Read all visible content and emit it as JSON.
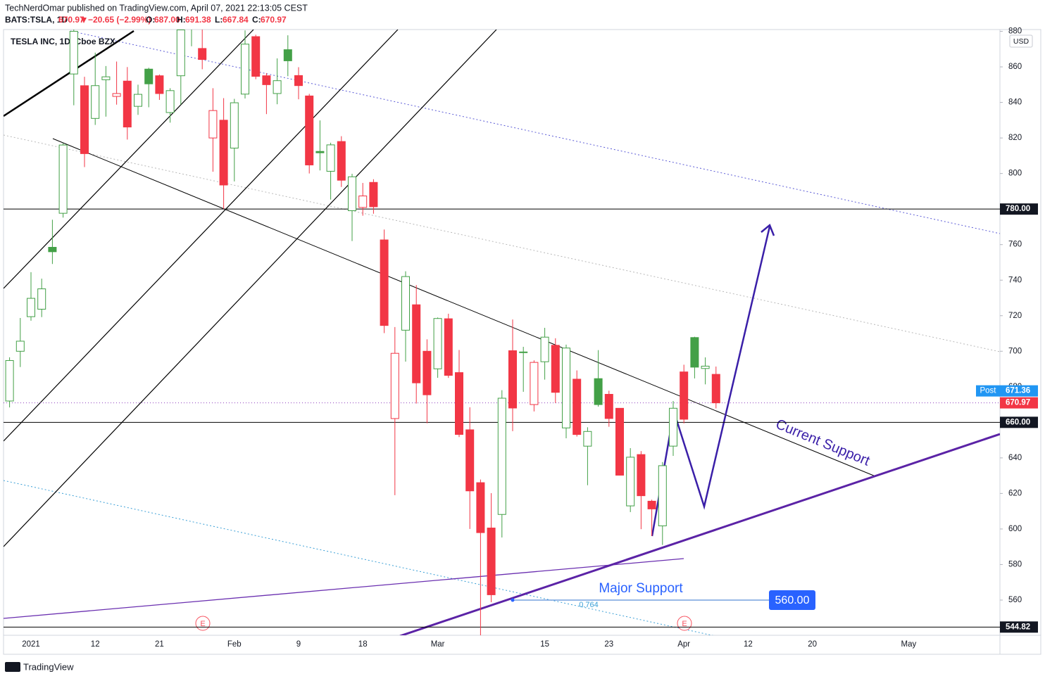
{
  "header": {
    "publisher": "TechNerdOmar published on TradingView.com, April 07, 2021 22:13:05 CEST",
    "symbol": "BATS:TSLA, 1D",
    "price": "670.97",
    "change": "−20.65 (−2.99%)",
    "ohlc": [
      {
        "key": "O:",
        "value": "687.00"
      },
      {
        "key": "H:",
        "value": "691.38"
      },
      {
        "key": "L:",
        "value": "667.84"
      },
      {
        "key": "C:",
        "value": "670.97"
      }
    ]
  },
  "footer": {
    "brand": "TradingView"
  },
  "chart_data": {
    "type": "candlestick",
    "title": "TESLA INC, 1D, Cboe BZX",
    "currency": "USD",
    "categories": [
      null,
      null,
      "2021",
      null,
      null,
      null,
      null,
      null,
      "12",
      null,
      null,
      null,
      null,
      null,
      "21",
      null,
      null,
      null,
      null,
      null,
      null,
      "Feb",
      null,
      null,
      null,
      null,
      null,
      "9",
      null,
      null,
      null,
      null,
      null,
      "18",
      null,
      null,
      null,
      null,
      null,
      null,
      "Mar",
      null,
      null,
      null,
      null,
      null,
      null,
      null,
      null,
      null,
      "15",
      null,
      null,
      null,
      null,
      null,
      "23",
      null,
      null,
      null,
      null,
      null,
      null,
      "Apr",
      null,
      null,
      null,
      null,
      null,
      "12",
      null,
      null,
      null,
      null,
      null,
      "20",
      null,
      null,
      null,
      null,
      null,
      null,
      null,
      null,
      "May",
      null,
      null,
      null,
      null,
      null,
      null,
      null
    ],
    "open": [
      672,
      699.99,
      719.46,
      723.66,
      758.49,
      777.63,
      856,
      849.4,
      831,
      852.76,
      843.39,
      852,
      837.8,
      858.74,
      855,
      834.31,
      855,
      891.38,
      870.35,
      820,
      830,
      814.29,
      844.68,
      877.02,
      855,
      845,
      869.67,
      855.12,
      843.64,
      812.44,
      801.26,
      818,
      779.09,
      780.9,
      795,
      762.64,
      662.13,
      711.85,
      726.15,
      700,
      690.11,
      718.28,
      687.99,
      655.8,
      626.06,
      600.55,
      608.18,
      700.3,
      699.4,
      670,
      694.09,
      703.35,
      656.87,
      684.29,
      646.6,
      684.59,
      675.77,
      667.91,
      613,
      641.87,
      615.64,
      601.75,
      646.62,
      688.37,
      707.71,
      690.3,
      687,
      null,
      null,
      null,
      null,
      null,
      null,
      null,
      null,
      null,
      null,
      null,
      null,
      null,
      null,
      null,
      null,
      null,
      null,
      null,
      null,
      null,
      null,
      null,
      null,
      null
    ],
    "high": [
      696.6,
      718.72,
      744.49,
      740.84,
      774,
      816.99,
      884.49,
      854.43,
      868,
      860.47,
      863,
      859.9,
      850,
      859.5,
      855.72,
      848,
      900.4,
      895.9,
      891.5,
      848,
      842.41,
      842,
      880.5,
      878.08,
      856.5,
      864.77,
      877.77,
      859.8,
      844.82,
      829.88,
      817.33,
      821,
      799.84,
      794.69,
      796.79,
      768.5,
      713.61,
      745,
      737.21,
      706.7,
      719,
      721.11,
      700.7,
      668.5,
      627.84,
      620.13,
      678.09,
      717.85,
      702.5,
      694.88,
      713.18,
      707.31,
      703.73,
      689.23,
      657.23,
      700.64,
      677.8,
      668.02,
      645.5,
      643.82,
      616.48,
      637.66,
      672,
      692.42,
      708.16,
      696.55,
      691.38,
      null,
      null,
      null,
      null,
      null,
      null,
      null,
      null,
      null,
      null,
      null,
      null,
      null,
      null,
      null,
      null,
      null,
      null,
      null,
      null,
      null,
      null,
      null,
      null,
      null
    ],
    "low": [
      668.4,
      691.12,
      717.19,
      719.2,
      749.1,
      775.2,
      838.39,
      803.62,
      827.34,
      832,
      838.75,
      819.1,
      833,
      837.28,
      841.42,
      828.62,
      838.82,
      871.6,
      858.66,
      801,
      780.1,
      795.56,
      842.2,
      853.06,
      833.42,
      838.97,
      854.75,
      841.75,
      800.02,
      801.73,
      785.33,
      792.44,
      762.01,
      776.27,
      777.37,
      710.2,
      619,
      694.17,
      670.58,
      659.51,
      685.05,
      685,
      651.71,
      600,
      539.49,
      558.79,
      595.21,
      655.06,
      677.18,
      666.14,
      684.04,
      670.88,
      651.01,
      652,
      624.62,
      668.84,
      657.51,
      630.11,
      609.5,
      599.89,
      596.02,
      591.01,
      641.11,
      659.42,
      684.7,
      681.37,
      667.84,
      null,
      null,
      null,
      null,
      null,
      null,
      null,
      null,
      null,
      null,
      null,
      null,
      null,
      null,
      null,
      null,
      null,
      null,
      null,
      null,
      null,
      null,
      null,
      null,
      null
    ],
    "close": [
      694.78,
      705.67,
      729.77,
      735.11,
      755.98,
      816.04,
      880.02,
      811.19,
      849.44,
      854.41,
      845,
      826.16,
      844.55,
      850.45,
      844.99,
      846.64,
      880.8,
      883.09,
      864.16,
      835.43,
      793.53,
      839.81,
      872.79,
      854.69,
      849.99,
      852.23,
      863.42,
      849.46,
      804.82,
      811.66,
      816.12,
      796.22,
      798.15,
      787.38,
      781.3,
      714.5,
      698.84,
      742.02,
      682.22,
      675.5,
      718.43,
      686.44,
      653.2,
      621.44,
      597.95,
      563,
      673.58,
      668.06,
      699.6,
      693.73,
      707.94,
      676.88,
      701.81,
      653.16,
      654.87,
      670,
      662.16,
      630.27,
      640.39,
      618.71,
      611.29,
      635.62,
      667.93,
      661.75,
      691.05,
      691.62,
      670.97,
      null,
      null,
      null,
      null,
      null,
      null,
      null,
      null,
      null,
      null,
      null,
      null,
      null,
      null,
      null,
      null,
      null,
      null,
      null,
      null,
      null,
      null,
      null,
      null,
      null
    ],
    "up_color": "#43a047",
    "down_color": "#f23645",
    "style": "hollow",
    "ylim": [
      540,
      881
    ],
    "yticks": [
      560,
      580,
      600,
      620,
      640,
      660,
      680,
      700,
      720,
      740,
      760,
      780,
      800,
      820,
      840,
      860,
      880
    ],
    "grid": false,
    "price_lines": [
      {
        "value": 780,
        "label": "780.00"
      },
      {
        "value": 660,
        "label": "660.00"
      },
      {
        "value": 544.82,
        "label": "544.82"
      }
    ],
    "last_price": {
      "value": 670.97,
      "label": "670.97"
    },
    "post_market": {
      "name": "Post",
      "value": 671.36,
      "label": "671.36"
    },
    "target": {
      "value": 560,
      "label": "560.00",
      "fib_level": "0.764",
      "text": "Major Support"
    },
    "annotations": [
      "Current Support"
    ],
    "earnings_marker": "E"
  }
}
